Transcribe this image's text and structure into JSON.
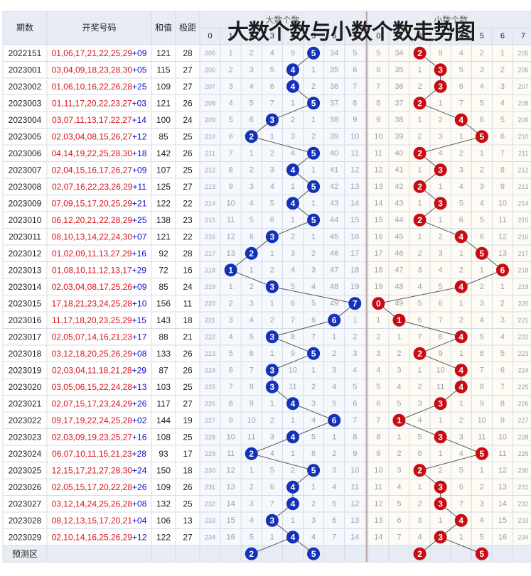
{
  "headers": {
    "period": "期数",
    "numbers": "开奖号码",
    "sum": "和值",
    "range": "极距",
    "big_group": "大数个数",
    "small_group": "小数个数",
    "predict": "预测区"
  },
  "title": "大数个数与小数个数走势图",
  "colors": {
    "red_text": "#d8141c",
    "blue_text": "#1010cc",
    "big_ball": "#1432b8",
    "small_ball": "#c80c14",
    "header_bg": "#e8ecf4",
    "small_area_bg": "#fdfbf4",
    "big_area_bg": "#f5f8fc",
    "grid": "#d5dbe6"
  },
  "chart_data": {
    "type": "table",
    "columns": [
      0,
      1,
      2,
      3,
      4,
      5,
      6,
      7
    ],
    "rows": [
      {
        "period": "2022151",
        "red": "01,06,17,21,22,25,29",
        "blue": "09",
        "sum": 121,
        "range": 28,
        "id": 205,
        "big": 5,
        "small": 2,
        "big_cells": [
          "205",
          "1",
          "2",
          "4",
          "9",
          "",
          "34",
          "5"
        ],
        "small_cells": [
          "5",
          "34",
          "",
          "9",
          "4",
          "2",
          "1",
          "205"
        ]
      },
      {
        "period": "2023001",
        "red": "03,04,09,18,23,28,30",
        "blue": "05",
        "sum": 115,
        "range": 27,
        "id": 206,
        "big": 4,
        "small": 3,
        "big_cells": [
          "206",
          "2",
          "3",
          "5",
          "",
          "1",
          "35",
          "6"
        ],
        "small_cells": [
          "6",
          "35",
          "1",
          "",
          "5",
          "3",
          "2",
          "206"
        ]
      },
      {
        "period": "2023002",
        "red": "01,06,10,16,22,26,28",
        "blue": "25",
        "sum": 109,
        "range": 27,
        "id": 207,
        "big": 4,
        "small": 3,
        "big_cells": [
          "207",
          "3",
          "4",
          "6",
          "",
          "2",
          "36",
          "7"
        ],
        "small_cells": [
          "7",
          "36",
          "2",
          "",
          "6",
          "4",
          "3",
          "207"
        ]
      },
      {
        "period": "2023003",
        "red": "01,11,17,20,22,23,27",
        "blue": "03",
        "sum": 121,
        "range": 26,
        "id": 208,
        "big": 5,
        "small": 2,
        "big_cells": [
          "208",
          "4",
          "5",
          "7",
          "1",
          "",
          "37",
          "8"
        ],
        "small_cells": [
          "8",
          "37",
          "",
          "1",
          "7",
          "5",
          "4",
          "208"
        ]
      },
      {
        "period": "2023004",
        "red": "03,07,11,13,17,22,27",
        "blue": "14",
        "sum": 100,
        "range": 24,
        "id": 209,
        "big": 3,
        "small": 4,
        "big_cells": [
          "209",
          "5",
          "6",
          "",
          "2",
          "1",
          "38",
          "9"
        ],
        "small_cells": [
          "9",
          "38",
          "1",
          "2",
          "",
          "6",
          "5",
          "209"
        ]
      },
      {
        "period": "2023005",
        "red": "02,03,04,08,15,26,27",
        "blue": "12",
        "sum": 85,
        "range": 25,
        "id": 210,
        "big": 2,
        "small": 5,
        "big_cells": [
          "210",
          "6",
          "",
          "1",
          "3",
          "2",
          "39",
          "10"
        ],
        "small_cells": [
          "10",
          "39",
          "2",
          "3",
          "1",
          "",
          "6",
          "210"
        ]
      },
      {
        "period": "2023006",
        "red": "04,14,19,22,25,28,30",
        "blue": "18",
        "sum": 142,
        "range": 26,
        "id": 211,
        "big": 5,
        "small": 2,
        "big_cells": [
          "211",
          "7",
          "1",
          "2",
          "4",
          "",
          "40",
          "11"
        ],
        "small_cells": [
          "11",
          "40",
          "",
          "4",
          "2",
          "1",
          "7",
          "211"
        ]
      },
      {
        "period": "2023007",
        "red": "02,04,15,16,17,26,27",
        "blue": "09",
        "sum": 107,
        "range": 25,
        "id": 212,
        "big": 4,
        "small": 3,
        "big_cells": [
          "212",
          "8",
          "2",
          "3",
          "",
          "1",
          "41",
          "12"
        ],
        "small_cells": [
          "12",
          "41",
          "1",
          "",
          "3",
          "2",
          "8",
          "212"
        ]
      },
      {
        "period": "2023008",
        "red": "02,07,16,22,23,26,29",
        "blue": "11",
        "sum": 125,
        "range": 27,
        "id": 213,
        "big": 5,
        "small": 2,
        "big_cells": [
          "213",
          "9",
          "3",
          "4",
          "1",
          "",
          "42",
          "13"
        ],
        "small_cells": [
          "13",
          "42",
          "",
          "1",
          "4",
          "3",
          "9",
          "213"
        ]
      },
      {
        "period": "2023009",
        "red": "07,09,15,17,20,25,29",
        "blue": "21",
        "sum": 122,
        "range": 22,
        "id": 214,
        "big": 4,
        "small": 3,
        "big_cells": [
          "214",
          "10",
          "4",
          "5",
          "",
          "1",
          "43",
          "14"
        ],
        "small_cells": [
          "14",
          "43",
          "1",
          "",
          "5",
          "4",
          "10",
          "214"
        ]
      },
      {
        "period": "2023010",
        "red": "06,12,20,21,22,28,29",
        "blue": "25",
        "sum": 138,
        "range": 23,
        "id": 215,
        "big": 5,
        "small": 2,
        "big_cells": [
          "215",
          "11",
          "5",
          "6",
          "1",
          "",
          "44",
          "15"
        ],
        "small_cells": [
          "15",
          "44",
          "",
          "1",
          "6",
          "5",
          "11",
          "215"
        ]
      },
      {
        "period": "2023011",
        "red": "08,10,13,14,22,24,30",
        "blue": "07",
        "sum": 121,
        "range": 22,
        "id": 216,
        "big": 3,
        "small": 4,
        "big_cells": [
          "216",
          "12",
          "6",
          "",
          "2",
          "1",
          "45",
          "16"
        ],
        "small_cells": [
          "16",
          "45",
          "1",
          "2",
          "",
          "6",
          "12",
          "216"
        ]
      },
      {
        "period": "2023012",
        "red": "01,02,09,11,13,27,29",
        "blue": "16",
        "sum": 92,
        "range": 28,
        "id": 217,
        "big": 2,
        "small": 5,
        "big_cells": [
          "217",
          "13",
          "",
          "1",
          "3",
          "2",
          "46",
          "17"
        ],
        "small_cells": [
          "17",
          "46",
          "2",
          "3",
          "1",
          "",
          "13",
          "217"
        ]
      },
      {
        "period": "2023013",
        "red": "01,08,10,11,12,13,17",
        "blue": "29",
        "sum": 72,
        "range": 16,
        "id": 218,
        "big": 1,
        "small": 6,
        "big_cells": [
          "218",
          "",
          "1",
          "2",
          "4",
          "3",
          "47",
          "18"
        ],
        "small_cells": [
          "18",
          "47",
          "3",
          "4",
          "2",
          "1",
          "",
          "218"
        ]
      },
      {
        "period": "2023014",
        "red": "02,03,04,08,17,25,26",
        "blue": "09",
        "sum": 85,
        "range": 24,
        "id": 219,
        "big": 3,
        "small": 4,
        "big_cells": [
          "219",
          "1",
          "2",
          "",
          "5",
          "4",
          "48",
          "19"
        ],
        "small_cells": [
          "19",
          "48",
          "4",
          "5",
          "",
          "2",
          "1",
          "219"
        ]
      },
      {
        "period": "2023015",
        "red": "17,18,21,23,24,25,28",
        "blue": "10",
        "sum": 156,
        "range": 11,
        "id": 220,
        "big": 7,
        "small": 0,
        "big_cells": [
          "220",
          "2",
          "3",
          "1",
          "6",
          "5",
          "49",
          ""
        ],
        "small_cells": [
          "",
          "49",
          "5",
          "6",
          "1",
          "3",
          "2",
          "220"
        ]
      },
      {
        "period": "2023016",
        "red": "11,17,18,20,23,25,29",
        "blue": "15",
        "sum": 143,
        "range": 18,
        "id": 221,
        "big": 6,
        "small": 1,
        "big_cells": [
          "221",
          "3",
          "4",
          "2",
          "7",
          "6",
          "",
          "1"
        ],
        "small_cells": [
          "1",
          "",
          "6",
          "7",
          "2",
          "4",
          "3",
          "221"
        ]
      },
      {
        "period": "2023017",
        "red": "02,05,07,14,16,21,23",
        "blue": "17",
        "sum": 88,
        "range": 21,
        "id": 222,
        "big": 3,
        "small": 4,
        "big_cells": [
          "222",
          "4",
          "5",
          "",
          "8",
          "7",
          "1",
          "2"
        ],
        "small_cells": [
          "2",
          "1",
          "7",
          "8",
          "",
          "5",
          "4",
          "222"
        ]
      },
      {
        "period": "2023018",
        "red": "03,12,18,20,25,26,29",
        "blue": "08",
        "sum": 133,
        "range": 26,
        "id": 223,
        "big": 5,
        "small": 2,
        "big_cells": [
          "223",
          "5",
          "6",
          "1",
          "9",
          "",
          "2",
          "3"
        ],
        "small_cells": [
          "3",
          "2",
          "",
          "9",
          "1",
          "6",
          "5",
          "223"
        ]
      },
      {
        "period": "2023019",
        "red": "02,03,04,11,18,21,28",
        "blue": "29",
        "sum": 87,
        "range": 26,
        "id": 224,
        "big": 3,
        "small": 4,
        "big_cells": [
          "224",
          "6",
          "7",
          "",
          "10",
          "1",
          "3",
          "4"
        ],
        "small_cells": [
          "4",
          "3",
          "1",
          "10",
          "",
          "7",
          "6",
          "224"
        ]
      },
      {
        "period": "2023020",
        "red": "03,05,06,15,22,24,28",
        "blue": "13",
        "sum": 103,
        "range": 25,
        "id": 225,
        "big": 3,
        "small": 4,
        "big_cells": [
          "225",
          "7",
          "8",
          "",
          "11",
          "2",
          "4",
          "5"
        ],
        "small_cells": [
          "5",
          "4",
          "2",
          "11",
          "",
          "8",
          "7",
          "225"
        ]
      },
      {
        "period": "2023021",
        "red": "02,07,15,17,23,24,29",
        "blue": "26",
        "sum": 117,
        "range": 27,
        "id": 226,
        "big": 4,
        "small": 3,
        "big_cells": [
          "226",
          "8",
          "9",
          "1",
          "",
          "3",
          "5",
          "6"
        ],
        "small_cells": [
          "6",
          "5",
          "3",
          "",
          "1",
          "9",
          "8",
          "226"
        ]
      },
      {
        "period": "2023022",
        "red": "09,17,19,22,24,25,28",
        "blue": "02",
        "sum": 144,
        "range": 19,
        "id": 227,
        "big": 6,
        "small": 1,
        "big_cells": [
          "227",
          "9",
          "10",
          "2",
          "1",
          "4",
          "",
          "7"
        ],
        "small_cells": [
          "7",
          "",
          "4",
          "1",
          "2",
          "10",
          "9",
          "227"
        ]
      },
      {
        "period": "2023023",
        "red": "02,03,09,19,23,25,27",
        "blue": "16",
        "sum": 108,
        "range": 25,
        "id": 228,
        "big": 4,
        "small": 3,
        "big_cells": [
          "228",
          "10",
          "11",
          "3",
          "",
          "5",
          "1",
          "8"
        ],
        "small_cells": [
          "8",
          "1",
          "5",
          "",
          "3",
          "11",
          "10",
          "228"
        ]
      },
      {
        "period": "2023024",
        "red": "06,07,10,11,15,21,23",
        "blue": "28",
        "sum": 93,
        "range": 17,
        "id": 229,
        "big": 2,
        "small": 5,
        "big_cells": [
          "229",
          "11",
          "",
          "4",
          "1",
          "6",
          "2",
          "9"
        ],
        "small_cells": [
          "9",
          "2",
          "6",
          "1",
          "4",
          "",
          "11",
          "229"
        ]
      },
      {
        "period": "2023025",
        "red": "12,15,17,21,27,28,30",
        "blue": "24",
        "sum": 150,
        "range": 18,
        "id": 230,
        "big": 5,
        "small": 2,
        "big_cells": [
          "230",
          "12",
          "1",
          "5",
          "2",
          "",
          "3",
          "10"
        ],
        "small_cells": [
          "10",
          "3",
          "",
          "2",
          "5",
          "1",
          "12",
          "230"
        ]
      },
      {
        "period": "2023026",
        "red": "02,05,15,17,20,22,28",
        "blue": "26",
        "sum": 109,
        "range": 26,
        "id": 231,
        "big": 4,
        "small": 3,
        "big_cells": [
          "231",
          "13",
          "2",
          "6",
          "",
          "1",
          "4",
          "11"
        ],
        "small_cells": [
          "11",
          "4",
          "1",
          "",
          "6",
          "2",
          "13",
          "231"
        ]
      },
      {
        "period": "2023027",
        "red": "03,12,14,24,25,26,28",
        "blue": "08",
        "sum": 132,
        "range": 25,
        "id": 232,
        "big": 4,
        "small": 3,
        "big_cells": [
          "232",
          "14",
          "3",
          "7",
          "",
          "2",
          "5",
          "12"
        ],
        "small_cells": [
          "12",
          "5",
          "2",
          "",
          "7",
          "3",
          "14",
          "232"
        ]
      },
      {
        "period": "2023028",
        "red": "08,12,13,15,17,20,21",
        "blue": "04",
        "sum": 106,
        "range": 13,
        "id": 233,
        "big": 3,
        "small": 4,
        "big_cells": [
          "233",
          "15",
          "4",
          "",
          "1",
          "3",
          "6",
          "13"
        ],
        "small_cells": [
          "13",
          "6",
          "3",
          "1",
          "",
          "4",
          "15",
          "233"
        ]
      },
      {
        "period": "2023029",
        "red": "02,10,14,16,25,26,29",
        "blue": "12",
        "sum": 122,
        "range": 27,
        "id": 234,
        "big": 4,
        "small": 3,
        "big_cells": [
          "234",
          "16",
          "5",
          "1",
          "",
          "4",
          "7",
          "14"
        ],
        "small_cells": [
          "14",
          "7",
          "4",
          "",
          "1",
          "5",
          "16",
          "234"
        ]
      }
    ],
    "predict": {
      "big": [
        2,
        5
      ],
      "small": [
        2,
        5
      ]
    }
  }
}
